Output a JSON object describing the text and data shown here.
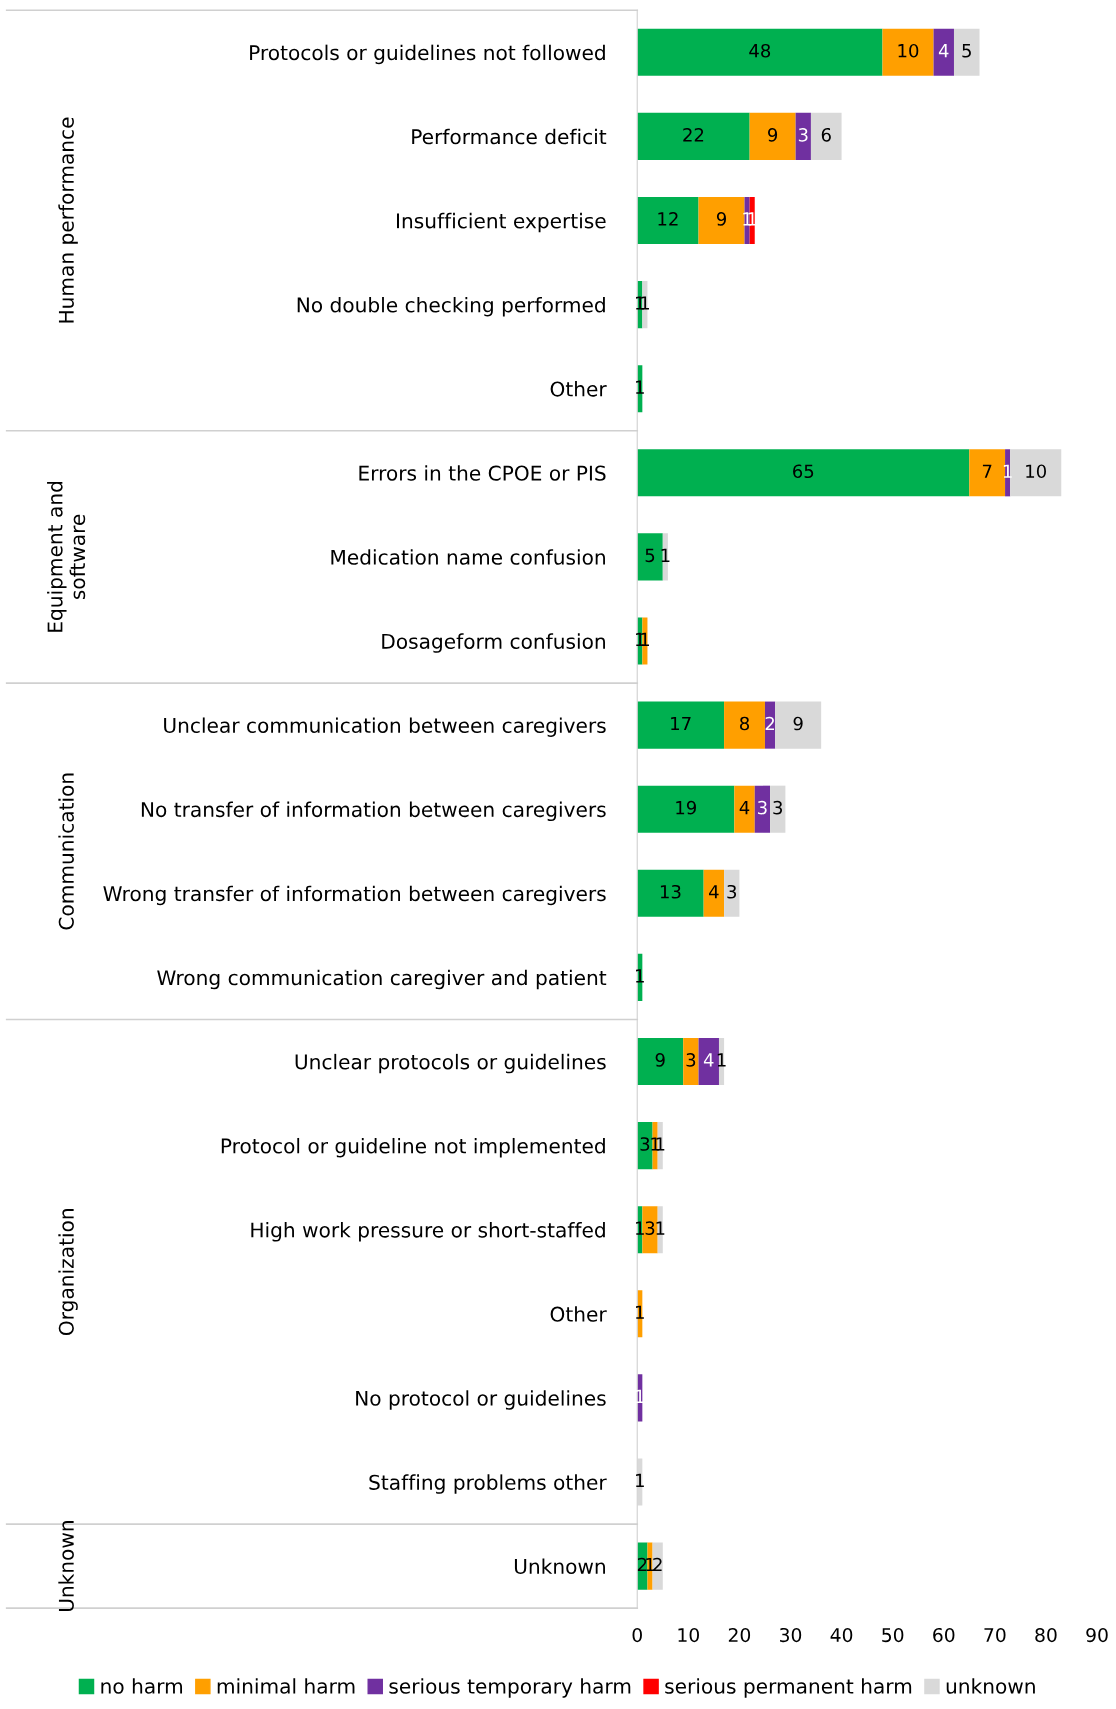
{
  "chart_data": {
    "type": "bar",
    "orientation": "horizontal",
    "stacked": true,
    "categories": [
      "Protocols or guidelines not followed",
      "Performance deficit",
      "Insufficient expertise",
      "No double checking performed",
      "Other",
      "Errors in the CPOE or PIS",
      "Medication name confusion",
      "Dosageform confusion",
      "Unclear communication between caregivers",
      "No transfer of information between caregivers",
      "Wrong transfer of information between caregivers",
      "Wrong communication caregiver and patient",
      "Unclear protocols or guidelines",
      "Protocol or guideline not implemented",
      "High work pressure or short-staffed",
      "Other",
      "No protocol or guidelines",
      "Staffing problems other",
      "Unknown"
    ],
    "series": [
      {
        "name": "no harm",
        "color": "#00b050",
        "values": [
          48,
          22,
          12,
          1,
          1,
          65,
          5,
          1,
          17,
          19,
          13,
          1,
          9,
          3,
          1,
          0,
          0,
          0,
          2
        ],
        "value_labels": [
          "48",
          "22",
          "12",
          "1",
          "1",
          "65",
          "5",
          "1",
          "17",
          "19",
          "13",
          "1",
          "9",
          "3",
          "1",
          null,
          null,
          null,
          "2"
        ]
      },
      {
        "name": "minimal harm",
        "color": "#ff9f00",
        "values": [
          10,
          9,
          9,
          0,
          0,
          7,
          0,
          1,
          8,
          4,
          4,
          0,
          3,
          1,
          3,
          1,
          0,
          0,
          1
        ],
        "value_labels": [
          "10",
          "9",
          "9",
          null,
          null,
          "7",
          null,
          "1",
          "8",
          "4",
          "4",
          null,
          "3",
          "1",
          "3",
          "1",
          null,
          null,
          "1"
        ]
      },
      {
        "name": "serious temporary harm",
        "color": "#7030a0",
        "values": [
          4,
          3,
          1,
          0,
          0,
          1,
          0,
          0,
          2,
          3,
          0,
          0,
          4,
          0,
          0,
          0,
          1,
          0,
          0
        ],
        "value_labels": [
          "4",
          "3",
          "1",
          null,
          null,
          "1",
          null,
          null,
          "2",
          "3",
          null,
          null,
          "4",
          null,
          null,
          null,
          "1",
          null,
          null
        ]
      },
      {
        "name": "serious permanent harm",
        "color": "#ff0000",
        "values": [
          0,
          0,
          1,
          0,
          0,
          0,
          0,
          0,
          0,
          0,
          0,
          0,
          0,
          0,
          0,
          0,
          0,
          0,
          0
        ],
        "value_labels": [
          null,
          null,
          "1",
          null,
          null,
          null,
          null,
          null,
          null,
          null,
          null,
          null,
          null,
          null,
          null,
          null,
          null,
          null,
          null
        ]
      },
      {
        "name": "unknown",
        "color": "#d9d9d9",
        "values": [
          5,
          6,
          0,
          1,
          0,
          10,
          1,
          0,
          9,
          3,
          3,
          0,
          1,
          1,
          1,
          0,
          0,
          1,
          2
        ],
        "value_labels": [
          "5",
          "6",
          null,
          "1",
          null,
          "10",
          "1",
          null,
          "9",
          "3",
          "3",
          null,
          "1",
          "1",
          "1",
          null,
          null,
          "1",
          "2"
        ]
      }
    ],
    "xlim": [
      0,
      90
    ],
    "xticks": [
      0,
      10,
      20,
      30,
      40,
      50,
      60,
      70,
      80,
      90
    ],
    "annotations": [
      "Human performance",
      "Equipment and\nsoftware",
      "Communication",
      "Organization",
      "Unknown"
    ],
    "legend": "bottom",
    "grid": false
  }
}
